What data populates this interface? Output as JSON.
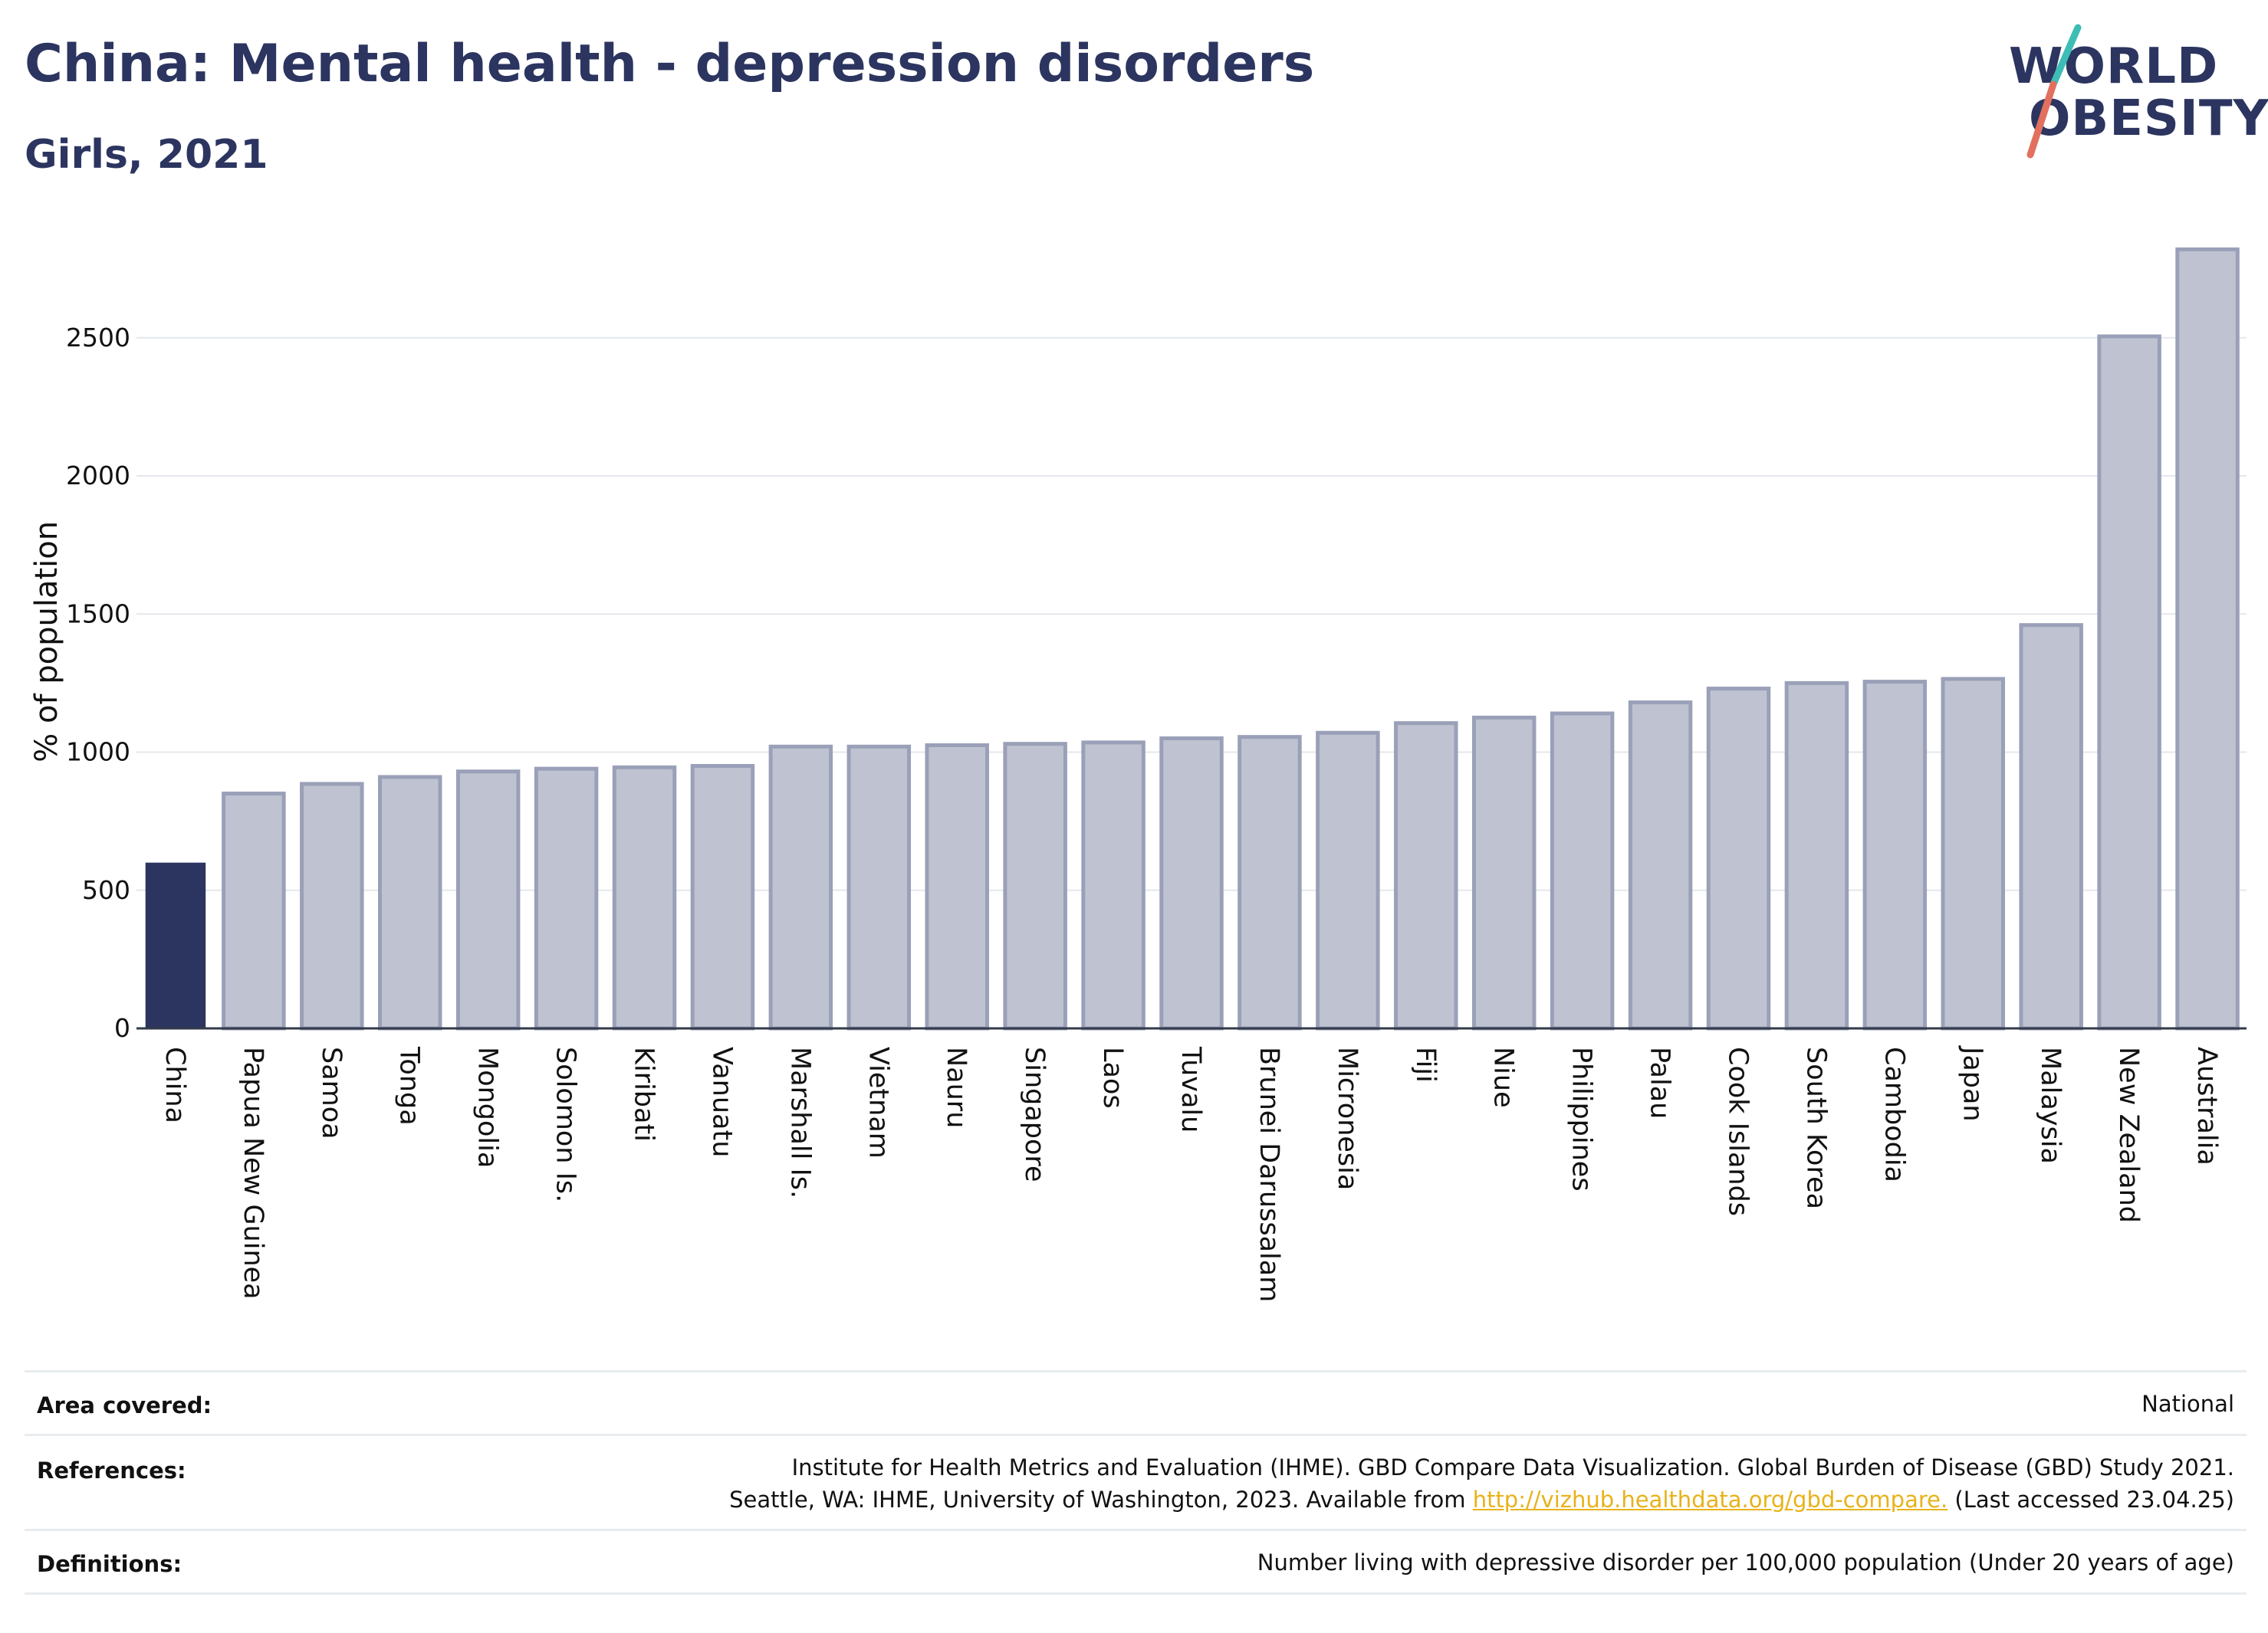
{
  "header": {
    "title": "China: Mental health - depression disorders",
    "subtitle": "Girls, 2021",
    "logo_line1": "WORLD",
    "logo_line2": "OBESITY"
  },
  "colors": {
    "highlight_bar": "#2c3560",
    "other_bar_fill": "#bfc3d1",
    "other_bar_stroke": "#9aa0b8",
    "logo_teal": "#3dbdb5",
    "logo_coral": "#e2705e",
    "link": "#e8b21a"
  },
  "chart_data": {
    "type": "bar",
    "ylabel": "% of population",
    "ylim": [
      0,
      2850
    ],
    "yticks": [
      0,
      500,
      1000,
      1500,
      2000,
      2500
    ],
    "grid": true,
    "highlight": "China",
    "categories": [
      "China",
      "Papua New Guinea",
      "Samoa",
      "Tonga",
      "Mongolia",
      "Solomon Is.",
      "Kiribati",
      "Vanuatu",
      "Marshall Is.",
      "Vietnam",
      "Nauru",
      "Singapore",
      "Laos",
      "Tuvalu",
      "Brunei Darussalam",
      "Micronesia",
      "Fiji",
      "Niue",
      "Philippines",
      "Palau",
      "Cook Islands",
      "South Korea",
      "Cambodia",
      "Japan",
      "Malaysia",
      "New Zealand",
      "Australia"
    ],
    "values": [
      600,
      850,
      885,
      910,
      930,
      940,
      945,
      950,
      1020,
      1020,
      1025,
      1030,
      1035,
      1050,
      1055,
      1070,
      1105,
      1125,
      1140,
      1180,
      1230,
      1250,
      1255,
      1265,
      1460,
      2505,
      2820
    ]
  },
  "meta": {
    "area_label": "Area covered:",
    "area_value": "National",
    "references_label": "References:",
    "references_line1": "Institute for Health Metrics and Evaluation (IHME). GBD Compare Data Visualization. Global Burden of Disease (GBD) Study 2021.",
    "references_line2_pre": "Seattle, WA: IHME, University of Washington, 2023. Available from ",
    "references_link": "http://vizhub.healthdata.org/gbd-compare.",
    "references_line2_post": " (Last accessed 23.04.25)",
    "definitions_label": "Definitions:",
    "definitions_value": "Number living with depressive disorder per 100,000 population (Under 20 years of age)"
  }
}
